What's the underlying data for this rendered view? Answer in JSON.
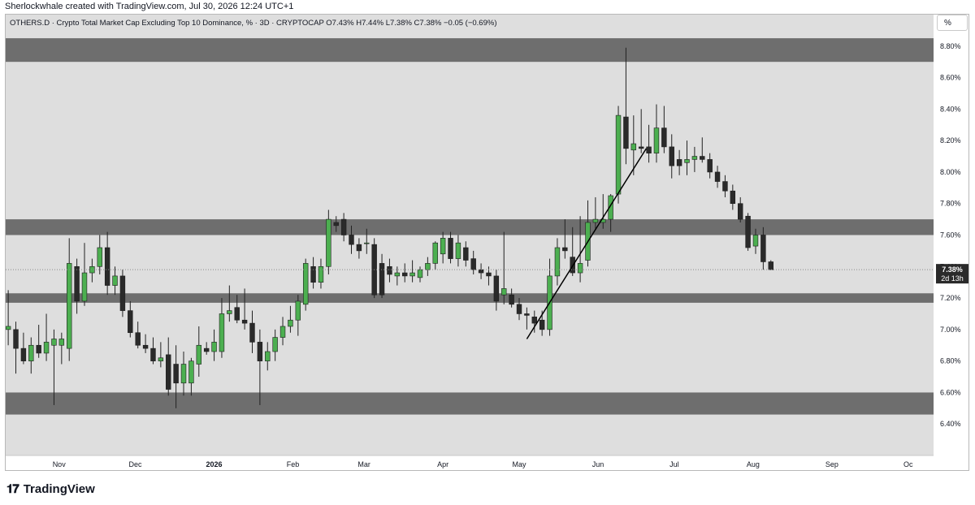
{
  "header": {
    "credit": "Sherlockwhale created with TradingView.com, Jul 30, 2026 12:24 UTC+1",
    "legend": "OTHERS.D · Crypto Total Market Cap Excluding Top 10 Dominance, % · 3D · CRYPTOCAP  O7.43%  H7.44%  L7.38%  C7.38%  −0.05 (−0.69%)"
  },
  "scale_button": "%",
  "price_label": {
    "value": "7.38%",
    "countdown": "2d 13h"
  },
  "footer": {
    "logo_text": "TradingView",
    "logo_mark": "𝟏𝟕"
  },
  "colors": {
    "background": "#dedede",
    "up": "#4caf50",
    "down": "#2a2a2a",
    "zone": "#6e6e6e",
    "trendline": "#000000",
    "price_label_bg": "#2a2a2a"
  },
  "chart_data": {
    "type": "candlestick",
    "symbol": "OTHERS.D",
    "interval": "3D",
    "ylim": [
      6.2,
      9.0
    ],
    "y_ticks": [
      "6.40%",
      "6.60%",
      "6.80%",
      "7.00%",
      "7.20%",
      "7.40%",
      "7.60%",
      "7.80%",
      "8.00%",
      "8.20%",
      "8.40%",
      "8.60%",
      "8.80%"
    ],
    "x_ticks": [
      "Nov",
      "Dec",
      "2026",
      "Feb",
      "Mar",
      "Apr",
      "May",
      "Jun",
      "Jul",
      "Aug",
      "Sep",
      "Oc"
    ],
    "x_tick_months": [
      "2025-11-01",
      "2025-12-01",
      "2026-01-01",
      "2026-02-01",
      "2026-03-01",
      "2026-04-01",
      "2026-05-01",
      "2026-06-01",
      "2026-07-01",
      "2026-08-01",
      "2026-09-01",
      "2026-10-01"
    ],
    "x_range": [
      "2025-10-11",
      "2026-10-11"
    ],
    "zones": [
      {
        "low": 8.7,
        "high": 8.85
      },
      {
        "low": 7.6,
        "high": 7.7
      },
      {
        "low": 7.17,
        "high": 7.23
      },
      {
        "low": 6.46,
        "high": 6.6
      }
    ],
    "trendline": [
      {
        "date": "2026-05-04",
        "value": 6.94
      },
      {
        "date": "2026-06-20",
        "value": 8.15
      }
    ],
    "last_price": 7.38,
    "candles": [
      {
        "date": "2025-10-12",
        "o": 7.0,
        "h": 7.25,
        "l": 6.9,
        "c": 7.02
      },
      {
        "date": "2025-10-15",
        "o": 7.0,
        "h": 7.05,
        "l": 6.72,
        "c": 6.88
      },
      {
        "date": "2025-10-18",
        "o": 6.88,
        "h": 6.98,
        "l": 6.78,
        "c": 6.8
      },
      {
        "date": "2025-10-21",
        "o": 6.8,
        "h": 6.95,
        "l": 6.72,
        "c": 6.9
      },
      {
        "date": "2025-10-24",
        "o": 6.9,
        "h": 7.03,
        "l": 6.82,
        "c": 6.85
      },
      {
        "date": "2025-10-27",
        "o": 6.85,
        "h": 7.1,
        "l": 6.8,
        "c": 6.92
      },
      {
        "date": "2025-10-30",
        "o": 6.9,
        "h": 7.0,
        "l": 6.52,
        "c": 6.94
      },
      {
        "date": "2025-11-02",
        "o": 6.9,
        "h": 6.98,
        "l": 6.78,
        "c": 6.94
      },
      {
        "date": "2025-11-05",
        "o": 6.88,
        "h": 7.58,
        "l": 6.8,
        "c": 7.42
      },
      {
        "date": "2025-11-08",
        "o": 7.4,
        "h": 7.45,
        "l": 7.1,
        "c": 7.18
      },
      {
        "date": "2025-11-11",
        "o": 7.18,
        "h": 7.55,
        "l": 7.15,
        "c": 7.36
      },
      {
        "date": "2025-11-14",
        "o": 7.36,
        "h": 7.45,
        "l": 7.3,
        "c": 7.4
      },
      {
        "date": "2025-11-17",
        "o": 7.4,
        "h": 7.6,
        "l": 7.35,
        "c": 7.52
      },
      {
        "date": "2025-11-20",
        "o": 7.52,
        "h": 7.62,
        "l": 7.22,
        "c": 7.28
      },
      {
        "date": "2025-11-23",
        "o": 7.28,
        "h": 7.4,
        "l": 7.22,
        "c": 7.34
      },
      {
        "date": "2025-11-26",
        "o": 7.34,
        "h": 7.38,
        "l": 7.08,
        "c": 7.12
      },
      {
        "date": "2025-11-29",
        "o": 7.12,
        "h": 7.18,
        "l": 6.95,
        "c": 6.98
      },
      {
        "date": "2025-12-02",
        "o": 6.98,
        "h": 7.05,
        "l": 6.88,
        "c": 6.9
      },
      {
        "date": "2025-12-05",
        "o": 6.9,
        "h": 6.97,
        "l": 6.85,
        "c": 6.88
      },
      {
        "date": "2025-12-08",
        "o": 6.88,
        "h": 6.95,
        "l": 6.78,
        "c": 6.8
      },
      {
        "date": "2025-12-11",
        "o": 6.8,
        "h": 6.92,
        "l": 6.76,
        "c": 6.82
      },
      {
        "date": "2025-12-14",
        "o": 6.84,
        "h": 6.95,
        "l": 6.58,
        "c": 6.62
      },
      {
        "date": "2025-12-17",
        "o": 6.78,
        "h": 6.9,
        "l": 6.5,
        "c": 6.66
      },
      {
        "date": "2025-12-20",
        "o": 6.66,
        "h": 6.86,
        "l": 6.58,
        "c": 6.78
      },
      {
        "date": "2025-12-23",
        "o": 6.66,
        "h": 6.82,
        "l": 6.58,
        "c": 6.8
      },
      {
        "date": "2025-12-26",
        "o": 6.78,
        "h": 7.02,
        "l": 6.7,
        "c": 6.9
      },
      {
        "date": "2025-12-29",
        "o": 6.88,
        "h": 6.92,
        "l": 6.84,
        "c": 6.86
      },
      {
        "date": "2026-01-01",
        "o": 6.86,
        "h": 7.0,
        "l": 6.8,
        "c": 6.92
      },
      {
        "date": "2026-01-04",
        "o": 6.86,
        "h": 7.2,
        "l": 6.82,
        "c": 7.1
      },
      {
        "date": "2026-01-07",
        "o": 7.1,
        "h": 7.28,
        "l": 7.05,
        "c": 7.12
      },
      {
        "date": "2026-01-10",
        "o": 7.14,
        "h": 7.22,
        "l": 7.04,
        "c": 7.06
      },
      {
        "date": "2026-01-13",
        "o": 7.06,
        "h": 7.26,
        "l": 7.0,
        "c": 7.04
      },
      {
        "date": "2026-01-16",
        "o": 7.04,
        "h": 7.12,
        "l": 6.85,
        "c": 6.92
      },
      {
        "date": "2026-01-19",
        "o": 6.92,
        "h": 7.0,
        "l": 6.52,
        "c": 6.8
      },
      {
        "date": "2026-01-22",
        "o": 6.8,
        "h": 6.92,
        "l": 6.74,
        "c": 6.86
      },
      {
        "date": "2026-01-25",
        "o": 6.86,
        "h": 7.0,
        "l": 6.8,
        "c": 6.95
      },
      {
        "date": "2026-01-28",
        "o": 6.95,
        "h": 7.08,
        "l": 6.9,
        "c": 7.02
      },
      {
        "date": "2026-01-31",
        "o": 7.02,
        "h": 7.15,
        "l": 6.98,
        "c": 7.06
      },
      {
        "date": "2026-02-03",
        "o": 7.06,
        "h": 7.22,
        "l": 6.96,
        "c": 7.18
      },
      {
        "date": "2026-02-06",
        "o": 7.16,
        "h": 7.45,
        "l": 7.12,
        "c": 7.42
      },
      {
        "date": "2026-02-09",
        "o": 7.4,
        "h": 7.46,
        "l": 7.26,
        "c": 7.3
      },
      {
        "date": "2026-02-12",
        "o": 7.3,
        "h": 7.45,
        "l": 7.26,
        "c": 7.4
      },
      {
        "date": "2026-02-15",
        "o": 7.4,
        "h": 7.76,
        "l": 7.35,
        "c": 7.7
      },
      {
        "date": "2026-02-18",
        "o": 7.68,
        "h": 7.72,
        "l": 7.62,
        "c": 7.66
      },
      {
        "date": "2026-02-21",
        "o": 7.7,
        "h": 7.74,
        "l": 7.56,
        "c": 7.6
      },
      {
        "date": "2026-02-24",
        "o": 7.6,
        "h": 7.66,
        "l": 7.48,
        "c": 7.54
      },
      {
        "date": "2026-02-27",
        "o": 7.54,
        "h": 7.58,
        "l": 7.45,
        "c": 7.5
      },
      {
        "date": "2026-03-02",
        "o": 7.55,
        "h": 7.64,
        "l": 7.48,
        "c": 7.55
      },
      {
        "date": "2026-03-05",
        "o": 7.54,
        "h": 7.58,
        "l": 7.2,
        "c": 7.22
      },
      {
        "date": "2026-03-08",
        "o": 7.42,
        "h": 7.48,
        "l": 7.2,
        "c": 7.22
      },
      {
        "date": "2026-03-11",
        "o": 7.4,
        "h": 7.45,
        "l": 7.3,
        "c": 7.35
      },
      {
        "date": "2026-03-14",
        "o": 7.34,
        "h": 7.4,
        "l": 7.28,
        "c": 7.36
      },
      {
        "date": "2026-03-17",
        "o": 7.36,
        "h": 7.42,
        "l": 7.3,
        "c": 7.34
      },
      {
        "date": "2026-03-20",
        "o": 7.34,
        "h": 7.44,
        "l": 7.3,
        "c": 7.36
      },
      {
        "date": "2026-03-23",
        "o": 7.33,
        "h": 7.4,
        "l": 7.3,
        "c": 7.38
      },
      {
        "date": "2026-03-26",
        "o": 7.38,
        "h": 7.46,
        "l": 7.34,
        "c": 7.42
      },
      {
        "date": "2026-03-29",
        "o": 7.42,
        "h": 7.56,
        "l": 7.38,
        "c": 7.55
      },
      {
        "date": "2026-04-01",
        "o": 7.48,
        "h": 7.62,
        "l": 7.42,
        "c": 7.58
      },
      {
        "date": "2026-04-04",
        "o": 7.58,
        "h": 7.62,
        "l": 7.42,
        "c": 7.45
      },
      {
        "date": "2026-04-07",
        "o": 7.45,
        "h": 7.6,
        "l": 7.4,
        "c": 7.55
      },
      {
        "date": "2026-04-10",
        "o": 7.52,
        "h": 7.56,
        "l": 7.4,
        "c": 7.44
      },
      {
        "date": "2026-04-13",
        "o": 7.45,
        "h": 7.5,
        "l": 7.35,
        "c": 7.38
      },
      {
        "date": "2026-04-16",
        "o": 7.38,
        "h": 7.42,
        "l": 7.32,
        "c": 7.36
      },
      {
        "date": "2026-04-19",
        "o": 7.36,
        "h": 7.4,
        "l": 7.28,
        "c": 7.34
      },
      {
        "date": "2026-04-22",
        "o": 7.34,
        "h": 7.38,
        "l": 7.12,
        "c": 7.18
      },
      {
        "date": "2026-04-25",
        "o": 7.22,
        "h": 7.62,
        "l": 7.16,
        "c": 7.26
      },
      {
        "date": "2026-04-28",
        "o": 7.22,
        "h": 7.26,
        "l": 7.14,
        "c": 7.16
      },
      {
        "date": "2026-05-01",
        "o": 7.16,
        "h": 7.2,
        "l": 7.06,
        "c": 7.1
      },
      {
        "date": "2026-05-04",
        "o": 7.1,
        "h": 7.14,
        "l": 7.0,
        "c": 7.09
      },
      {
        "date": "2026-05-07",
        "o": 7.08,
        "h": 7.12,
        "l": 6.98,
        "c": 7.04
      },
      {
        "date": "2026-05-10",
        "o": 7.06,
        "h": 7.12,
        "l": 6.96,
        "c": 7.0
      },
      {
        "date": "2026-05-13",
        "o": 7.0,
        "h": 7.45,
        "l": 6.96,
        "c": 7.34
      },
      {
        "date": "2026-05-16",
        "o": 7.34,
        "h": 7.58,
        "l": 7.28,
        "c": 7.52
      },
      {
        "date": "2026-05-19",
        "o": 7.52,
        "h": 7.7,
        "l": 7.45,
        "c": 7.5
      },
      {
        "date": "2026-05-22",
        "o": 7.46,
        "h": 7.65,
        "l": 7.34,
        "c": 7.36
      },
      {
        "date": "2026-05-25",
        "o": 7.36,
        "h": 7.72,
        "l": 7.3,
        "c": 7.42
      },
      {
        "date": "2026-05-28",
        "o": 7.44,
        "h": 7.82,
        "l": 7.4,
        "c": 7.68
      },
      {
        "date": "2026-05-31",
        "o": 7.68,
        "h": 7.84,
        "l": 7.64,
        "c": 7.7
      },
      {
        "date": "2026-06-03",
        "o": 7.68,
        "h": 7.86,
        "l": 7.64,
        "c": 7.7
      },
      {
        "date": "2026-06-06",
        "o": 7.7,
        "h": 7.86,
        "l": 7.62,
        "c": 7.85
      },
      {
        "date": "2026-06-09",
        "o": 7.86,
        "h": 8.42,
        "l": 7.8,
        "c": 8.36
      },
      {
        "date": "2026-06-12",
        "o": 8.35,
        "h": 8.79,
        "l": 8.05,
        "c": 8.15
      },
      {
        "date": "2026-06-15",
        "o": 8.14,
        "h": 8.36,
        "l": 7.98,
        "c": 8.18
      },
      {
        "date": "2026-06-18",
        "o": 8.16,
        "h": 8.4,
        "l": 8.12,
        "c": 8.15
      },
      {
        "date": "2026-06-21",
        "o": 8.16,
        "h": 8.3,
        "l": 8.06,
        "c": 8.12
      },
      {
        "date": "2026-06-24",
        "o": 8.12,
        "h": 8.43,
        "l": 8.06,
        "c": 8.28
      },
      {
        "date": "2026-06-27",
        "o": 8.28,
        "h": 8.42,
        "l": 8.12,
        "c": 8.16
      },
      {
        "date": "2026-06-30",
        "o": 8.16,
        "h": 8.24,
        "l": 7.96,
        "c": 8.04
      },
      {
        "date": "2026-07-03",
        "o": 8.08,
        "h": 8.14,
        "l": 7.98,
        "c": 8.04
      },
      {
        "date": "2026-07-06",
        "o": 8.06,
        "h": 8.2,
        "l": 7.98,
        "c": 8.08
      },
      {
        "date": "2026-07-09",
        "o": 8.08,
        "h": 8.16,
        "l": 8.0,
        "c": 8.1
      },
      {
        "date": "2026-07-12",
        "o": 8.1,
        "h": 8.22,
        "l": 8.06,
        "c": 8.08
      },
      {
        "date": "2026-07-15",
        "o": 8.08,
        "h": 8.12,
        "l": 7.96,
        "c": 8.0
      },
      {
        "date": "2026-07-18",
        "o": 8.0,
        "h": 8.04,
        "l": 7.9,
        "c": 7.94
      },
      {
        "date": "2026-07-21",
        "o": 7.94,
        "h": 7.98,
        "l": 7.84,
        "c": 7.88
      },
      {
        "date": "2026-07-24",
        "o": 7.88,
        "h": 7.92,
        "l": 7.76,
        "c": 7.8
      },
      {
        "date": "2026-07-27",
        "o": 7.8,
        "h": 7.84,
        "l": 7.68,
        "c": 7.7
      },
      {
        "date": "2026-07-30",
        "o": 7.72,
        "h": 7.74,
        "l": 7.5,
        "c": 7.52
      },
      {
        "date": "2026-08-02",
        "o": 7.53,
        "h": 7.64,
        "l": 7.48,
        "c": 7.6
      },
      {
        "date": "2026-08-05",
        "o": 7.6,
        "h": 7.65,
        "l": 7.38,
        "c": 7.43
      },
      {
        "date": "2026-08-08",
        "o": 7.43,
        "h": 7.44,
        "l": 7.38,
        "c": 7.38
      }
    ]
  }
}
